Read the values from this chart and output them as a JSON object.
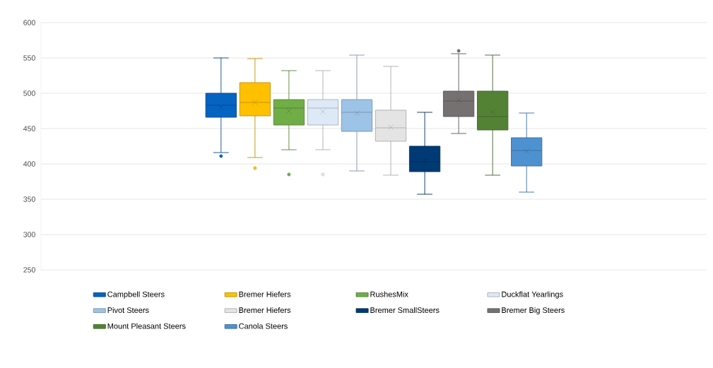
{
  "chart_data": {
    "type": "box",
    "categories": [
      null
    ],
    "ylim": [
      250,
      600
    ],
    "yticks": [
      250,
      300,
      350,
      400,
      450,
      500,
      550,
      600
    ],
    "grid": "y",
    "legend": "bottom",
    "series": [
      {
        "name": "Campbell Steers",
        "color": "#0563c1",
        "boxes": [
          {
            "low": 416,
            "q1": 466,
            "median": 483,
            "q3": 500,
            "high": 550,
            "mean": 480,
            "outliers": [
              411
            ]
          }
        ]
      },
      {
        "name": "Bremer Hiefers",
        "color": "#ffc000",
        "boxes": [
          {
            "low": 409,
            "q1": 468,
            "median": 487,
            "q3": 515,
            "high": 549,
            "mean": 487,
            "outliers": [
              394
            ]
          }
        ]
      },
      {
        "name": "RushesMix",
        "color": "#70ad47",
        "boxes": [
          {
            "low": 420,
            "q1": 455,
            "median": 479,
            "q3": 491,
            "high": 532,
            "mean": 475,
            "outliers": [
              385
            ]
          }
        ]
      },
      {
        "name": "Duckflat Yearlings",
        "color": "#dde9f6",
        "boxes": [
          {
            "low": 420,
            "q1": 455,
            "median": 479,
            "q3": 491,
            "high": 532,
            "mean": 474,
            "outliers": [
              385
            ]
          }
        ]
      },
      {
        "name": "Pivot Steers",
        "color": "#9dc3e6",
        "boxes": [
          {
            "low": 390,
            "q1": 446,
            "median": 473,
            "q3": 491,
            "high": 554,
            "mean": 472
          }
        ]
      },
      {
        "name": "Bremer Hiefers",
        "color": "#e4e4e4",
        "boxes": [
          {
            "low": 384,
            "q1": 432,
            "median": 451,
            "q3": 476,
            "high": 538,
            "mean": 452
          }
        ]
      },
      {
        "name": "Bremer SmallSteers",
        "color": "#003a75",
        "boxes": [
          {
            "low": 357,
            "q1": 389,
            "median": 403,
            "q3": 425,
            "high": 473,
            "mean": 406
          }
        ]
      },
      {
        "name": "Bremer Big Steers",
        "color": "#767171",
        "boxes": [
          {
            "low": 443,
            "q1": 467,
            "median": 489,
            "q3": 503,
            "high": 556,
            "mean": 490,
            "outliers": [
              560
            ]
          }
        ]
      },
      {
        "name": "Mount Pleasant Steers",
        "color": "#548235",
        "boxes": [
          {
            "low": 384,
            "q1": 448,
            "median": 467,
            "q3": 503,
            "high": 554,
            "mean": 473
          }
        ]
      },
      {
        "name": "Canola Steers",
        "color": "#4e91d0",
        "boxes": [
          {
            "low": 360,
            "q1": 397,
            "median": 419,
            "q3": 437,
            "high": 472,
            "mean": 418
          }
        ]
      }
    ]
  }
}
